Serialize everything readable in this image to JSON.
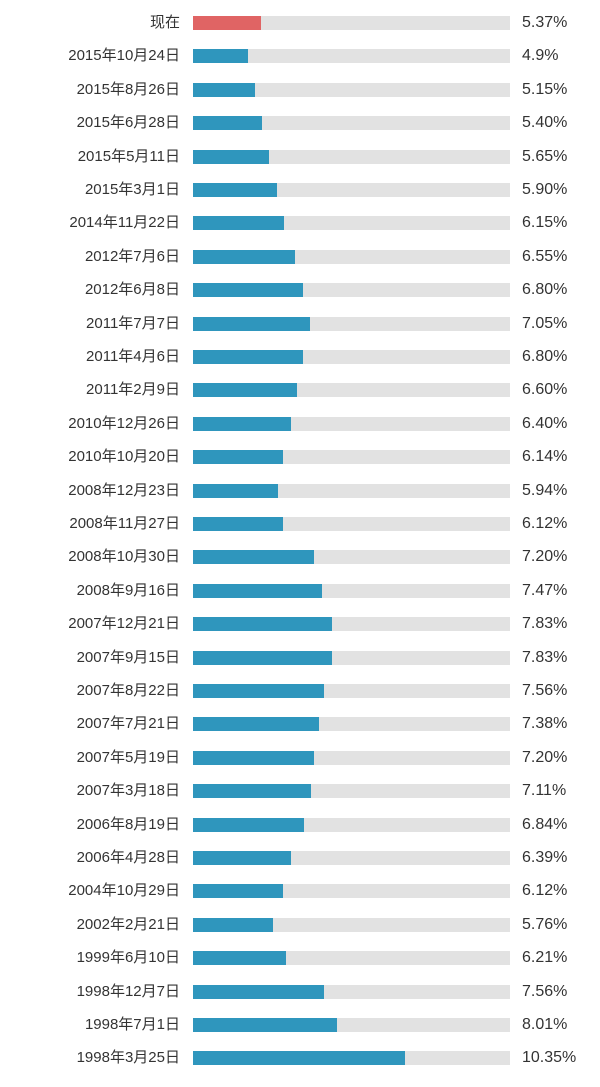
{
  "chart_data": {
    "type": "bar",
    "orientation": "horizontal",
    "title": "",
    "xlabel": "",
    "ylabel": "",
    "xlim": [
      3,
      14
    ],
    "grid": false,
    "legend": "none",
    "colors": {
      "highlight": "#e06464",
      "bar": "#2f96bd",
      "track": "#e2e2e2"
    },
    "categories": [
      "现在",
      "2015年10月24日",
      "2015年8月26日",
      "2015年6月28日",
      "2015年5月11日",
      "2015年3月1日",
      "2014年11月22日",
      "2012年7月6日",
      "2012年6月8日",
      "2011年7月7日",
      "2011年4月6日",
      "2011年2月9日",
      "2010年12月26日",
      "2010年10月20日",
      "2008年12月23日",
      "2008年11月27日",
      "2008年10月30日",
      "2008年9月16日",
      "2007年12月21日",
      "2007年9月15日",
      "2007年8月22日",
      "2007年7月21日",
      "2007年5月19日",
      "2007年3月18日",
      "2006年8月19日",
      "2006年4月28日",
      "2004年10月29日",
      "2002年2月21日",
      "1999年6月10日",
      "1998年12月7日",
      "1998年7月1日",
      "1998年3月25日"
    ],
    "values": [
      5.37,
      4.9,
      5.15,
      5.4,
      5.65,
      5.9,
      6.15,
      6.55,
      6.8,
      7.05,
      6.8,
      6.6,
      6.4,
      6.14,
      5.94,
      6.12,
      7.2,
      7.47,
      7.83,
      7.83,
      7.56,
      7.38,
      7.2,
      7.11,
      6.84,
      6.39,
      6.12,
      5.76,
      6.21,
      7.56,
      8.01,
      10.35
    ],
    "value_labels": [
      "5.37%",
      "4.9%",
      "5.15%",
      "5.40%",
      "5.65%",
      "5.90%",
      "6.15%",
      "6.55%",
      "6.80%",
      "7.05%",
      "6.80%",
      "6.60%",
      "6.40%",
      "6.14%",
      "5.94%",
      "6.12%",
      "7.20%",
      "7.47%",
      "7.83%",
      "7.83%",
      "7.56%",
      "7.38%",
      "7.20%",
      "7.11%",
      "6.84%",
      "6.39%",
      "6.12%",
      "5.76%",
      "6.21%",
      "7.56%",
      "8.01%",
      "10.35%"
    ],
    "highlight_index": 0
  }
}
